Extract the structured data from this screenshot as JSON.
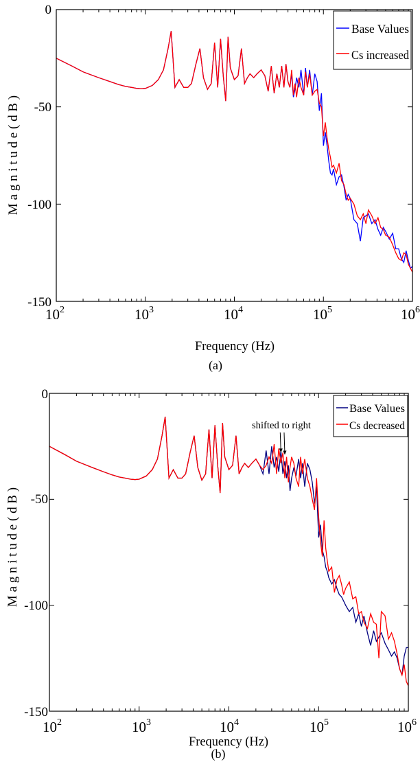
{
  "colors": {
    "base": "#0000ff",
    "modified": "#ff0000",
    "axis": "#000000"
  },
  "chart_data": [
    {
      "type": "line",
      "panel_label": "(a)",
      "xlabel": "Frequency (Hz)",
      "ylabel": "M a g n i t u d e  ( d B )",
      "x_scale": "log",
      "xlim": [
        100,
        1000000
      ],
      "ylim": [
        -150,
        0
      ],
      "x_ticks": [
        100,
        1000,
        10000,
        100000,
        1000000
      ],
      "x_tick_labels": [
        {
          "base": "10",
          "exp": "2"
        },
        {
          "base": "10",
          "exp": "3"
        },
        {
          "base": "10",
          "exp": "4"
        },
        {
          "base": "10",
          "exp": "5"
        },
        {
          "base": "10",
          "exp": "6"
        }
      ],
      "y_ticks": [
        0,
        -50,
        -100,
        -150
      ],
      "y_tick_labels": [
        "0",
        "-50",
        "-100",
        "-150"
      ],
      "grid": false,
      "legend_position": "top-right",
      "annotations": [],
      "series": [
        {
          "name": "Base Values",
          "color": "#0000ff",
          "x": [
            100,
            150,
            200,
            300,
            400,
            500,
            600,
            700,
            800,
            900,
            1000,
            1200,
            1400,
            1600,
            1800,
            1950,
            2150,
            2400,
            2700,
            3000,
            3300,
            3700,
            4100,
            4500,
            5000,
            5500,
            6000,
            6500,
            7000,
            7500,
            8000,
            8500,
            9000,
            10000,
            11000,
            12000,
            13000,
            14000,
            15000,
            16500,
            18000,
            20000,
            22000,
            24000,
            26000,
            28000,
            30000,
            32000,
            34000,
            36000,
            38000,
            40000,
            42000,
            44000,
            46000,
            48000,
            50000,
            53000,
            56000,
            60000,
            63000,
            66000,
            70000,
            75000,
            80000,
            85000,
            90000,
            95000,
            100000,
            105000,
            110000,
            115000,
            120000,
            125000,
            130000,
            140000,
            150000,
            160000,
            170000,
            180000,
            190000,
            200000,
            220000,
            240000,
            260000,
            280000,
            300000,
            320000,
            350000,
            380000,
            410000,
            440000,
            470000,
            500000,
            550000,
            600000,
            650000,
            700000,
            750000,
            800000,
            850000,
            900000,
            950000,
            1000000
          ],
          "y": [
            -25,
            -29,
            -32,
            -35,
            -37,
            -38.5,
            -39.5,
            -40,
            -40.5,
            -40.7,
            -40.5,
            -39,
            -36,
            -31,
            -20,
            -11,
            -40,
            -36,
            -40,
            -40,
            -38,
            -28,
            -20,
            -35,
            -41,
            -38,
            -17,
            -40,
            -15,
            -34,
            -47,
            -14,
            -30,
            -36,
            -34,
            -20,
            -38,
            -35,
            -33,
            -35,
            -33,
            -31,
            -34,
            -42,
            -29,
            -43,
            -33,
            -40,
            -29,
            -40,
            -28,
            -37,
            -40,
            -33,
            -45,
            -41,
            -35,
            -40,
            -31,
            -44,
            -30,
            -40,
            -31,
            -44,
            -33,
            -37,
            -52,
            -43,
            -70,
            -63,
            -70,
            -78,
            -84,
            -85,
            -82,
            -90,
            -86,
            -85,
            -91,
            -98,
            -95,
            -97,
            -108,
            -110,
            -119,
            -107,
            -106,
            -105,
            -110,
            -108,
            -113,
            -116,
            -112,
            -114,
            -118,
            -115,
            -123,
            -123,
            -128,
            -130,
            -124,
            -129,
            -133,
            -132
          ]
        },
        {
          "name": "Cs increased",
          "color": "#ff0000",
          "x": [
            100,
            150,
            200,
            300,
            400,
            500,
            600,
            700,
            800,
            900,
            1000,
            1200,
            1400,
            1600,
            1800,
            1950,
            2150,
            2400,
            2700,
            3000,
            3300,
            3700,
            4100,
            4500,
            5000,
            5500,
            6000,
            6500,
            7000,
            7500,
            8000,
            8500,
            9000,
            10000,
            11000,
            12000,
            13000,
            14000,
            15000,
            16500,
            18000,
            20000,
            22000,
            24000,
            26000,
            28000,
            30000,
            32000,
            34000,
            36000,
            38000,
            40000,
            42000,
            44000,
            46000,
            48000,
            50000,
            53000,
            56000,
            60000,
            63000,
            66000,
            70000,
            75000,
            80000,
            85000,
            90000,
            95000,
            100000,
            105000,
            110000,
            115000,
            120000,
            125000,
            130000,
            140000,
            150000,
            160000,
            170000,
            180000,
            190000,
            200000,
            220000,
            240000,
            260000,
            280000,
            300000,
            320000,
            350000,
            380000,
            410000,
            440000,
            470000,
            500000,
            550000,
            600000,
            650000,
            700000,
            750000,
            800000,
            850000,
            900000,
            950000,
            1000000
          ],
          "y": [
            -25,
            -29,
            -32,
            -35,
            -37,
            -38.5,
            -39.5,
            -40,
            -40.5,
            -40.7,
            -40.5,
            -39,
            -36,
            -31,
            -20,
            -11,
            -40,
            -36,
            -40,
            -40,
            -38,
            -28,
            -20,
            -35,
            -41,
            -38,
            -17,
            -40,
            -15,
            -34,
            -47,
            -14,
            -30,
            -36,
            -34,
            -20,
            -38,
            -35,
            -33,
            -35,
            -33,
            -31,
            -34,
            -42,
            -29,
            -43,
            -33,
            -40,
            -29,
            -40,
            -28,
            -37,
            -40,
            -31,
            -44,
            -38,
            -45,
            -35,
            -40,
            -44,
            -32,
            -40,
            -33,
            -44,
            -42,
            -41,
            -48,
            -50,
            -65,
            -58,
            -66,
            -72,
            -76,
            -81,
            -80,
            -84,
            -79,
            -88,
            -90,
            -95,
            -98,
            -97,
            -100,
            -106,
            -108,
            -105,
            -110,
            -103,
            -106,
            -110,
            -107,
            -112,
            -113,
            -116,
            -117,
            -121,
            -125,
            -128,
            -129,
            -125,
            -126,
            -131,
            -133,
            -135
          ]
        }
      ]
    },
    {
      "type": "line",
      "panel_label": "(b)",
      "xlabel": "Frequency (Hz)",
      "ylabel": "M a g n i t u d e  ( d B )",
      "x_scale": "log",
      "xlim": [
        100,
        1000000
      ],
      "ylim": [
        -150,
        0
      ],
      "x_ticks": [
        100,
        1000,
        10000,
        100000,
        1000000
      ],
      "x_tick_labels": [
        {
          "base": "10",
          "exp": "2"
        },
        {
          "base": "10",
          "exp": "3"
        },
        {
          "base": "10",
          "exp": "4"
        },
        {
          "base": "10",
          "exp": "5"
        },
        {
          "base": "10",
          "exp": "6"
        }
      ],
      "y_ticks": [
        0,
        -50,
        -100,
        -150
      ],
      "y_tick_labels": [
        "0",
        "-50",
        "-100",
        "-150"
      ],
      "grid": false,
      "legend_position": "top-right",
      "annotations": [
        {
          "text": "shifted to right",
          "x": 40000,
          "y": -19,
          "arrows_to": [
            [
              38000,
              -28
            ],
            [
              42000,
              -29
            ]
          ]
        }
      ],
      "series": [
        {
          "name": "Base Values",
          "color": "#0000ff",
          "x": [
            100,
            150,
            200,
            300,
            400,
            500,
            600,
            700,
            800,
            900,
            1000,
            1200,
            1400,
            1600,
            1800,
            1950,
            2150,
            2400,
            2700,
            3000,
            3300,
            3700,
            4100,
            4500,
            5000,
            5500,
            6000,
            6500,
            7000,
            7500,
            8000,
            8500,
            9000,
            10000,
            11000,
            12000,
            13000,
            14000,
            15000,
            16500,
            18000,
            20000,
            22000,
            24000,
            26000,
            28000,
            30000,
            32000,
            34000,
            36000,
            38000,
            40000,
            42000,
            44000,
            46000,
            48000,
            50000,
            53000,
            56000,
            60000,
            63000,
            66000,
            70000,
            75000,
            80000,
            85000,
            90000,
            95000,
            100000,
            105000,
            110000,
            115000,
            120000,
            125000,
            130000,
            140000,
            150000,
            160000,
            170000,
            180000,
            190000,
            200000,
            220000,
            240000,
            260000,
            280000,
            300000,
            320000,
            350000,
            380000,
            410000,
            440000,
            470000,
            500000,
            550000,
            600000,
            650000,
            700000,
            750000,
            800000,
            850000,
            900000,
            950000,
            1000000
          ],
          "y": [
            -25,
            -29,
            -32,
            -35,
            -37,
            -38.5,
            -39.5,
            -40,
            -40.5,
            -40.7,
            -40.5,
            -39,
            -36,
            -31,
            -20,
            -11,
            -40,
            -36,
            -40,
            -40,
            -38,
            -28,
            -20,
            -35,
            -41,
            -38,
            -17,
            -40,
            -15,
            -34,
            -47,
            -14,
            -30,
            -36,
            -34,
            -20,
            -38,
            -35,
            -33,
            -35,
            -33,
            -31,
            -34,
            -38,
            -27,
            -38,
            -25,
            -35,
            -30,
            -37,
            -27,
            -38,
            -32,
            -40,
            -34,
            -46,
            -40,
            -35,
            -39,
            -31,
            -40,
            -33,
            -44,
            -33,
            -36,
            -42,
            -52,
            -44,
            -68,
            -62,
            -74,
            -77,
            -82,
            -84,
            -87,
            -90,
            -88,
            -92,
            -95,
            -96,
            -98,
            -100,
            -103,
            -101,
            -108,
            -104,
            -110,
            -105,
            -113,
            -119,
            -112,
            -117,
            -115,
            -113,
            -118,
            -121,
            -124,
            -122,
            -125,
            -130,
            -133,
            -124,
            -120,
            -120
          ]
        },
        {
          "name": "Cs decreased",
          "color": "#ff0000",
          "x": [
            100,
            150,
            200,
            300,
            400,
            500,
            600,
            700,
            800,
            900,
            1000,
            1200,
            1400,
            1600,
            1800,
            1950,
            2150,
            2400,
            2700,
            3000,
            3300,
            3700,
            4100,
            4500,
            5000,
            5500,
            6000,
            6500,
            7000,
            7500,
            8000,
            8500,
            9000,
            10000,
            11000,
            12000,
            13000,
            14000,
            15000,
            16500,
            18000,
            20000,
            22000,
            24000,
            26000,
            28000,
            30000,
            32000,
            34000,
            36000,
            38000,
            40000,
            42000,
            44000,
            46000,
            48000,
            50000,
            53000,
            56000,
            60000,
            63000,
            66000,
            70000,
            75000,
            80000,
            85000,
            90000,
            95000,
            100000,
            105000,
            110000,
            115000,
            120000,
            125000,
            130000,
            140000,
            150000,
            160000,
            170000,
            180000,
            190000,
            200000,
            220000,
            240000,
            260000,
            280000,
            300000,
            320000,
            350000,
            380000,
            410000,
            440000,
            470000,
            500000,
            550000,
            600000,
            650000,
            700000,
            750000,
            800000,
            850000,
            900000,
            950000,
            1000000
          ],
          "y": [
            -25,
            -29,
            -32,
            -35,
            -37,
            -38.5,
            -39.5,
            -40,
            -40.5,
            -40.7,
            -40.5,
            -39,
            -36,
            -31,
            -20,
            -11,
            -40,
            -36,
            -40,
            -40,
            -38,
            -28,
            -20,
            -35,
            -41,
            -38,
            -17,
            -40,
            -15,
            -34,
            -47,
            -14,
            -30,
            -36,
            -34,
            -20,
            -38,
            -35,
            -33,
            -35,
            -33,
            -31,
            -34,
            -36,
            -34,
            -30,
            -33,
            -24,
            -38,
            -26,
            -33,
            -28,
            -40,
            -30,
            -42,
            -35,
            -30,
            -33,
            -40,
            -44,
            -30,
            -38,
            -31,
            -40,
            -44,
            -50,
            -55,
            -40,
            -58,
            -70,
            -77,
            -60,
            -73,
            -79,
            -84,
            -82,
            -94,
            -88,
            -86,
            -90,
            -95,
            -92,
            -89,
            -97,
            -96,
            -104,
            -103,
            -108,
            -111,
            -104,
            -108,
            -109,
            -125,
            -103,
            -105,
            -116,
            -113,
            -117,
            -123,
            -130,
            -133,
            -128,
            -136,
            -138
          ]
        }
      ]
    }
  ]
}
